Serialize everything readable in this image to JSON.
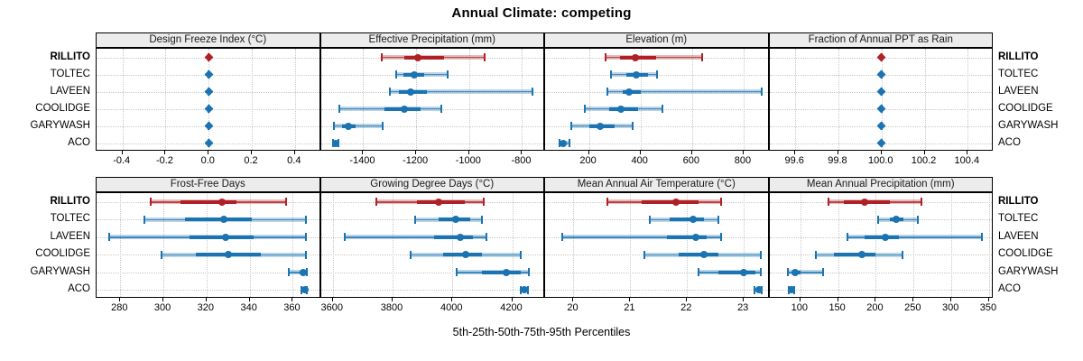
{
  "title": "Annual Climate: competing",
  "caption": "5th-25th-50th-75th-95th Percentiles",
  "sites": [
    "RILLITO",
    "TOLTEC",
    "LAVEEN",
    "COOLIDGE",
    "GARYWASH",
    "ACO"
  ],
  "highlight_site": "RILLITO",
  "colors": {
    "highlight": "#b02126",
    "normal": "#1b73b1",
    "strip_bg": "#ececec",
    "grid": "#c8c8c8",
    "border": "#000000"
  },
  "chart_data": [
    {
      "type": "dotplot-interval",
      "title": "Design Freeze Index (°C)",
      "row": 0,
      "col": 0,
      "ticks": [
        -0.4,
        -0.2,
        0,
        0.2,
        0.4
      ],
      "tick_labels": [
        "-0.4",
        "-0.2",
        "0.0",
        "0.2",
        "0.4"
      ],
      "domain": [
        -0.52,
        0.52
      ],
      "percentiles": [
        "5th",
        "25th",
        "50th",
        "75th",
        "95th"
      ],
      "values": [
        [
          0,
          0,
          0,
          0,
          0
        ],
        [
          0,
          0,
          0,
          0,
          0
        ],
        [
          0,
          0,
          0,
          0,
          0
        ],
        [
          0,
          0,
          0,
          0,
          0
        ],
        [
          0,
          0,
          0,
          0,
          0
        ],
        [
          0,
          0,
          0,
          0,
          0
        ]
      ]
    },
    {
      "type": "dotplot-interval",
      "title": "Effective Precipitation (mm)",
      "row": 0,
      "col": 1,
      "ticks": [
        -1400,
        -1200,
        -1000,
        -800
      ],
      "tick_labels": [
        "-1400",
        "-1200",
        "-1000",
        "-800"
      ],
      "domain": [
        -1560,
        -713
      ],
      "percentiles": [
        "5th",
        "25th",
        "50th",
        "75th",
        "95th"
      ],
      "values": [
        [
          -1330,
          -1245,
          -1195,
          -1095,
          -940
        ],
        [
          -1275,
          -1248,
          -1207,
          -1170,
          -1082
        ],
        [
          -1300,
          -1265,
          -1220,
          -1160,
          -760
        ],
        [
          -1490,
          -1320,
          -1245,
          -1185,
          -1105
        ],
        [
          -1510,
          -1480,
          -1455,
          -1430,
          -1325
        ],
        [
          -1515,
          -1508,
          -1505,
          -1500,
          -1493
        ]
      ]
    },
    {
      "type": "dotplot-interval",
      "title": "Elevation (m)",
      "row": 0,
      "col": 2,
      "ticks": [
        200,
        400,
        600,
        800
      ],
      "tick_labels": [
        "200",
        "400",
        "600",
        "800"
      ],
      "domain": [
        30,
        900
      ],
      "percentiles": [
        "5th",
        "25th",
        "50th",
        "75th",
        "95th"
      ],
      "values": [
        [
          265,
          320,
          380,
          460,
          640
        ],
        [
          285,
          345,
          385,
          430,
          465
        ],
        [
          270,
          330,
          355,
          400,
          870
        ],
        [
          185,
          280,
          325,
          390,
          485
        ],
        [
          130,
          200,
          245,
          300,
          370
        ],
        [
          85,
          95,
          100,
          110,
          125
        ]
      ]
    },
    {
      "type": "dotplot-interval",
      "title": "Fraction of Annual PPT as Rain",
      "row": 0,
      "col": 3,
      "ticks": [
        99.6,
        99.8,
        100,
        100.2,
        100.4
      ],
      "tick_labels": [
        "99.6",
        "99.8",
        "100.0",
        "100.2",
        "100.4"
      ],
      "domain": [
        99.48,
        100.52
      ],
      "percentiles": [
        "5th",
        "25th",
        "50th",
        "75th",
        "95th"
      ],
      "values": [
        [
          100,
          100,
          100,
          100,
          100
        ],
        [
          100,
          100,
          100,
          100,
          100
        ],
        [
          100,
          100,
          100,
          100,
          100
        ],
        [
          100,
          100,
          100,
          100,
          100
        ],
        [
          100,
          100,
          100,
          100,
          100
        ],
        [
          100,
          100,
          100,
          100,
          100
        ]
      ]
    },
    {
      "type": "dotplot-interval",
      "title": "Frost-Free Days",
      "row": 1,
      "col": 0,
      "ticks": [
        280,
        300,
        320,
        340,
        360
      ],
      "tick_labels": [
        "280",
        "300",
        "320",
        "340",
        "360"
      ],
      "domain": [
        269,
        373
      ],
      "percentiles": [
        "5th",
        "25th",
        "50th",
        "75th",
        "95th"
      ],
      "values": [
        [
          294,
          308,
          327,
          334,
          357
        ],
        [
          291,
          310,
          328,
          341,
          366
        ],
        [
          275,
          312,
          329,
          342,
          366
        ],
        [
          299,
          315,
          330,
          345,
          366
        ],
        [
          358,
          363,
          365,
          366,
          366.5
        ],
        [
          364,
          365,
          365.5,
          366,
          366.5
        ]
      ]
    },
    {
      "type": "dotplot-interval",
      "title": "Growing Degree Days (°C)",
      "row": 1,
      "col": 1,
      "ticks": [
        3600,
        3800,
        4000,
        4200
      ],
      "tick_labels": [
        "3600",
        "3800",
        "4000",
        "4200"
      ],
      "domain": [
        3560,
        4310
      ],
      "percentiles": [
        "5th",
        "25th",
        "50th",
        "75th",
        "95th"
      ],
      "values": [
        [
          3745,
          3880,
          3955,
          4040,
          4105
        ],
        [
          3875,
          3955,
          4010,
          4060,
          4100
        ],
        [
          3640,
          3940,
          4025,
          4070,
          4115
        ],
        [
          3860,
          3970,
          4045,
          4100,
          4230
        ],
        [
          4015,
          4100,
          4180,
          4230,
          4255
        ],
        [
          4228,
          4238,
          4242,
          4246,
          4254
        ]
      ]
    },
    {
      "type": "dotplot-interval",
      "title": "Mean Annual Air Temperature (°C)",
      "row": 1,
      "col": 2,
      "ticks": [
        20,
        21,
        22,
        23
      ],
      "tick_labels": [
        "20",
        "21",
        "22",
        "23"
      ],
      "domain": [
        19.5,
        23.45
      ],
      "percentiles": [
        "5th",
        "25th",
        "50th",
        "75th",
        "95th"
      ],
      "values": [
        [
          20.6,
          21.2,
          21.8,
          22.2,
          22.6
        ],
        [
          21.35,
          21.7,
          22.1,
          22.3,
          22.55
        ],
        [
          19.8,
          21.65,
          22.15,
          22.35,
          22.6
        ],
        [
          21.25,
          21.85,
          22.3,
          22.55,
          23.3
        ],
        [
          22.2,
          22.55,
          23.0,
          23.2,
          23.3
        ],
        [
          23.18,
          23.23,
          23.26,
          23.29,
          23.32
        ]
      ]
    },
    {
      "type": "dotplot-interval",
      "title": "Mean Annual Precipitation (mm)",
      "row": 1,
      "col": 3,
      "ticks": [
        100,
        150,
        200,
        250,
        300,
        350
      ],
      "tick_labels": [
        "100",
        "150",
        "200",
        "250",
        "300",
        "350"
      ],
      "domain": [
        59,
        356
      ],
      "percentiles": [
        "5th",
        "25th",
        "50th",
        "75th",
        "95th"
      ],
      "values": [
        [
          137,
          158,
          185,
          218,
          260
        ],
        [
          203,
          218,
          227,
          237,
          256
        ],
        [
          162,
          185,
          213,
          230,
          340
        ],
        [
          120,
          145,
          181,
          200,
          235
        ],
        [
          83,
          89,
          93,
          100,
          130
        ],
        [
          85,
          87,
          88,
          90,
          92
        ]
      ]
    }
  ]
}
